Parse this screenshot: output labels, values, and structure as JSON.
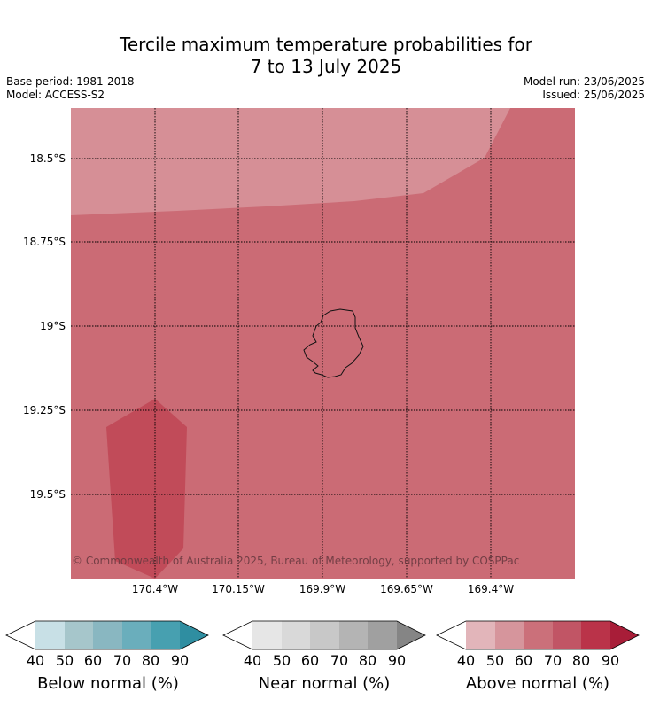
{
  "header": {
    "title_line1": "Tercile maximum temperature probabilities for",
    "title_line2": "7 to 13 July 2025",
    "base_period": "Base period: 1981-2018",
    "model": "Model: ACCESS-S2",
    "model_run": "Model run: 23/06/2025",
    "issued": "Issued: 25/06/2025"
  },
  "map": {
    "lat_labels": [
      "18.5°S",
      "18.75°S",
      "19°S",
      "19.25°S",
      "19.5°S"
    ],
    "lon_labels": [
      "170.4°W",
      "170.15°W",
      "169.9°W",
      "169.65°W",
      "169.4°W"
    ],
    "copyright": "© Commonwealth of Australia 2025, Bureau of Meteorology, supported by COSPPac",
    "regions": [
      {
        "category": "above",
        "probability_bin": "60-70",
        "color": "#cb6b75"
      },
      {
        "category": "above",
        "probability_bin": "50-60",
        "color": "#d68f96"
      },
      {
        "category": "above",
        "probability_bin": "70-80",
        "color": "#c14b59"
      }
    ]
  },
  "legends": [
    {
      "title": "Below normal (%)",
      "ticks": [
        "40",
        "50",
        "60",
        "70",
        "80",
        "90"
      ],
      "colors": [
        "#ffffff",
        "#c8e0e6",
        "#a6c6cb",
        "#89b7c1",
        "#6aaebc",
        "#47a0b0",
        "#2f8ea1"
      ]
    },
    {
      "title": "Near normal (%)",
      "ticks": [
        "40",
        "50",
        "60",
        "70",
        "80",
        "90"
      ],
      "colors": [
        "#ffffff",
        "#e6e6e6",
        "#d9d9d9",
        "#c8c8c8",
        "#b4b4b4",
        "#a0a0a0",
        "#858585"
      ]
    },
    {
      "title": "Above normal (%)",
      "ticks": [
        "40",
        "50",
        "60",
        "70",
        "80",
        "90"
      ],
      "colors": [
        "#ffffff",
        "#e2b5ba",
        "#d6959c",
        "#cb707a",
        "#c15565",
        "#ba3349",
        "#a81d38"
      ]
    }
  ]
}
